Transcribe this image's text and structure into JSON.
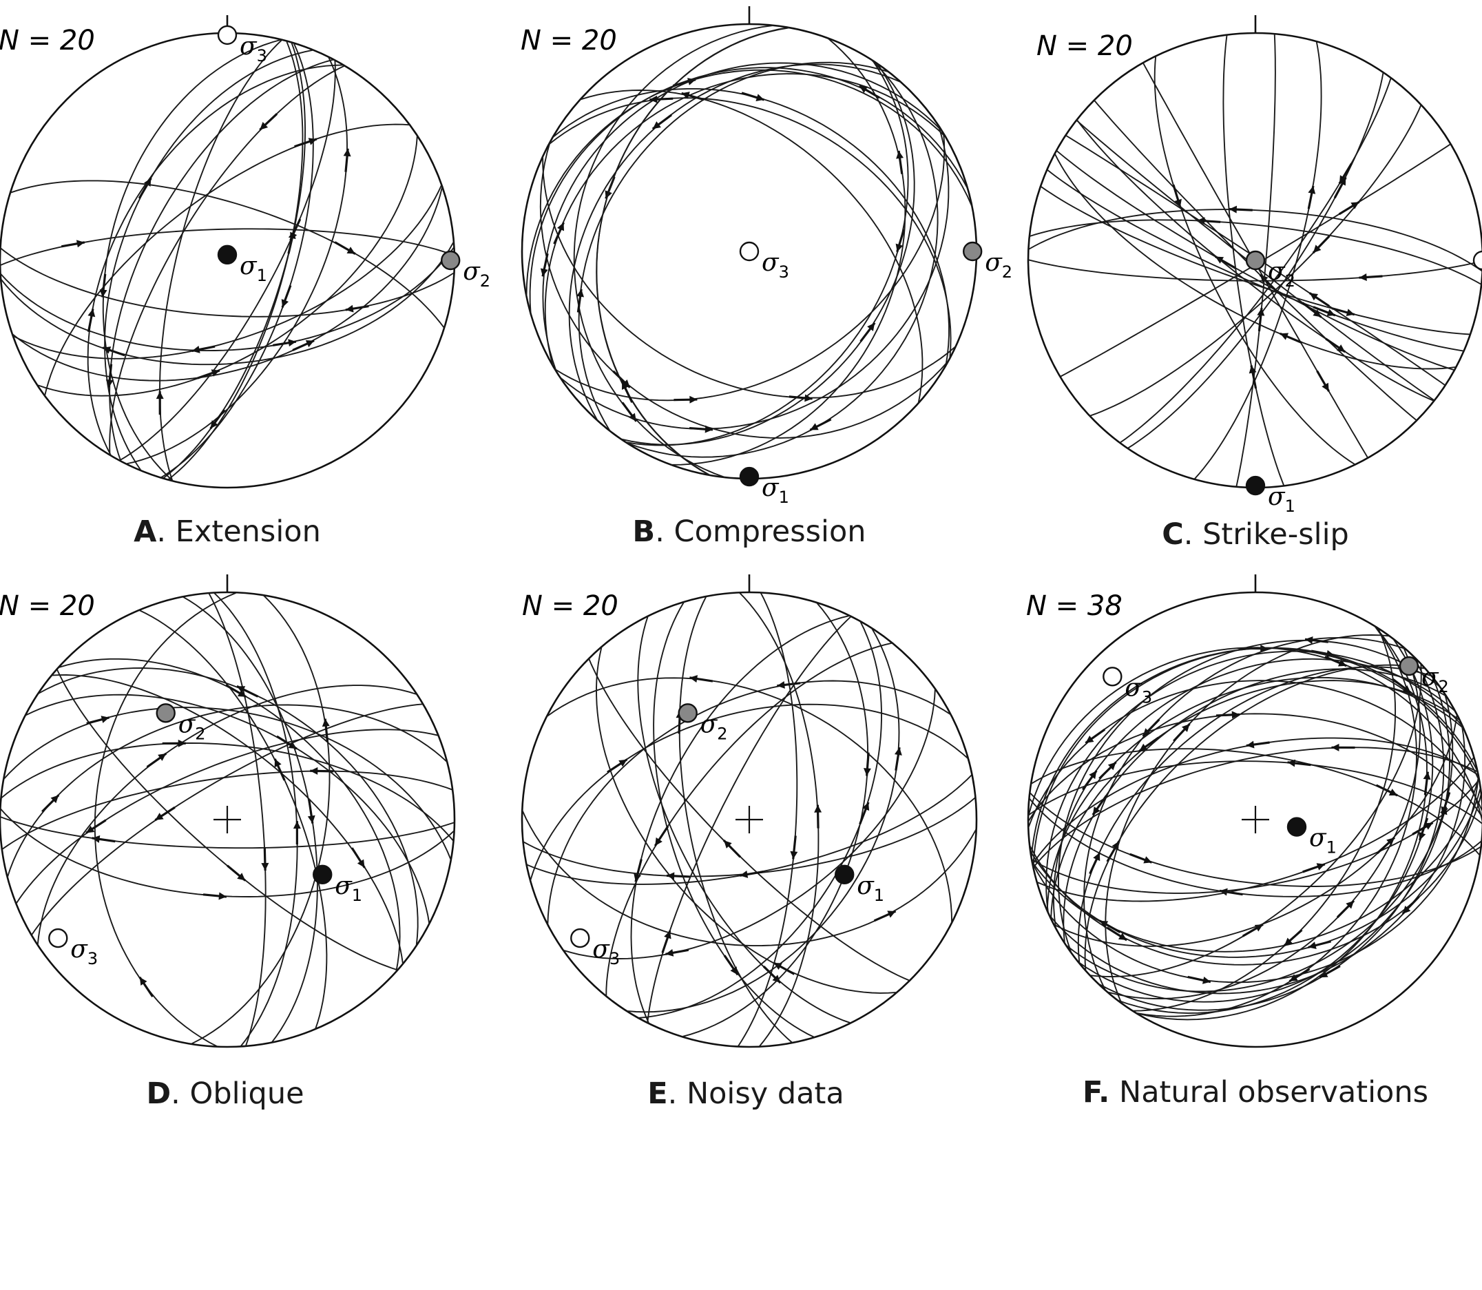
{
  "figure": {
    "panels": [
      {
        "id": "A",
        "letter": "A",
        "title": "Extension",
        "n_label": "N = 20",
        "seed": 11,
        "stresses": [
          {
            "name": "σ1",
            "symbol": "σ",
            "sub": "1",
            "fill": "#111111",
            "trend": 0,
            "plunge": 88
          },
          {
            "name": "σ2",
            "symbol": "σ",
            "sub": "2",
            "fill": "#888888",
            "trend": 90,
            "plunge": 2
          },
          {
            "name": "σ3",
            "symbol": "σ",
            "sub": "3",
            "fill": "#ffffff",
            "trend": 360,
            "plunge": 1
          }
        ]
      },
      {
        "id": "B",
        "letter": "B",
        "title": "Compression",
        "n_label": "N = 20",
        "seed": 23,
        "stresses": [
          {
            "name": "σ1",
            "symbol": "σ",
            "sub": "1",
            "fill": "#111111",
            "trend": 180,
            "plunge": 1
          },
          {
            "name": "σ2",
            "symbol": "σ",
            "sub": "2",
            "fill": "#888888",
            "trend": 90,
            "plunge": 2
          },
          {
            "name": "σ3",
            "symbol": "σ",
            "sub": "3",
            "fill": "#ffffff",
            "trend": 0,
            "plunge": 90
          }
        ]
      },
      {
        "id": "C",
        "letter": "C",
        "title": "Strike-slip",
        "n_label": "N = 20",
        "seed": 37,
        "stresses": [
          {
            "name": "σ1",
            "symbol": "σ",
            "sub": "1",
            "fill": "#111111",
            "trend": 180,
            "plunge": 1
          },
          {
            "name": "σ2",
            "symbol": "σ",
            "sub": "2",
            "fill": "#888888",
            "trend": 0,
            "plunge": 90
          },
          {
            "name": "σ3",
            "symbol": "σ",
            "sub": "3",
            "fill": "#ffffff",
            "trend": 90,
            "plunge": 0
          }
        ]
      },
      {
        "id": "D",
        "letter": "D",
        "title": "Oblique",
        "n_label": "N = 20",
        "seed": 41,
        "stresses": [
          {
            "name": "σ1",
            "symbol": "σ",
            "sub": "1",
            "fill": "#111111",
            "trend": 120,
            "plunge": 50
          },
          {
            "name": "σ2",
            "symbol": "σ",
            "sub": "2",
            "fill": "#888888",
            "trend": 330,
            "plunge": 45
          },
          {
            "name": "σ3",
            "symbol": "σ",
            "sub": "3",
            "fill": "#ffffff",
            "trend": 235,
            "plunge": 10
          }
        ]
      },
      {
        "id": "E",
        "letter": "E",
        "title": "Noisy data",
        "n_label": "N = 20",
        "seed": 53,
        "stresses": [
          {
            "name": "σ1",
            "symbol": "σ",
            "sub": "1",
            "fill": "#111111",
            "trend": 120,
            "plunge": 50
          },
          {
            "name": "σ2",
            "symbol": "σ",
            "sub": "2",
            "fill": "#888888",
            "trend": 330,
            "plunge": 45
          },
          {
            "name": "σ3",
            "symbol": "σ",
            "sub": "3",
            "fill": "#ffffff",
            "trend": 235,
            "plunge": 10
          }
        ]
      },
      {
        "id": "F",
        "letter": "F.",
        "title": "Natural observations",
        "n_label": "N = 38",
        "seed": 67,
        "stresses": [
          {
            "name": "σ1",
            "symbol": "σ",
            "sub": "1",
            "fill": "#111111",
            "trend": 100,
            "plunge": 75
          },
          {
            "name": "σ2",
            "symbol": "σ",
            "sub": "2",
            "fill": "#888888",
            "trend": 45,
            "plunge": 5
          },
          {
            "name": "σ3",
            "symbol": "σ",
            "sub": "3",
            "fill": "#ffffff",
            "trend": 315,
            "plunge": 12
          }
        ]
      }
    ]
  }
}
